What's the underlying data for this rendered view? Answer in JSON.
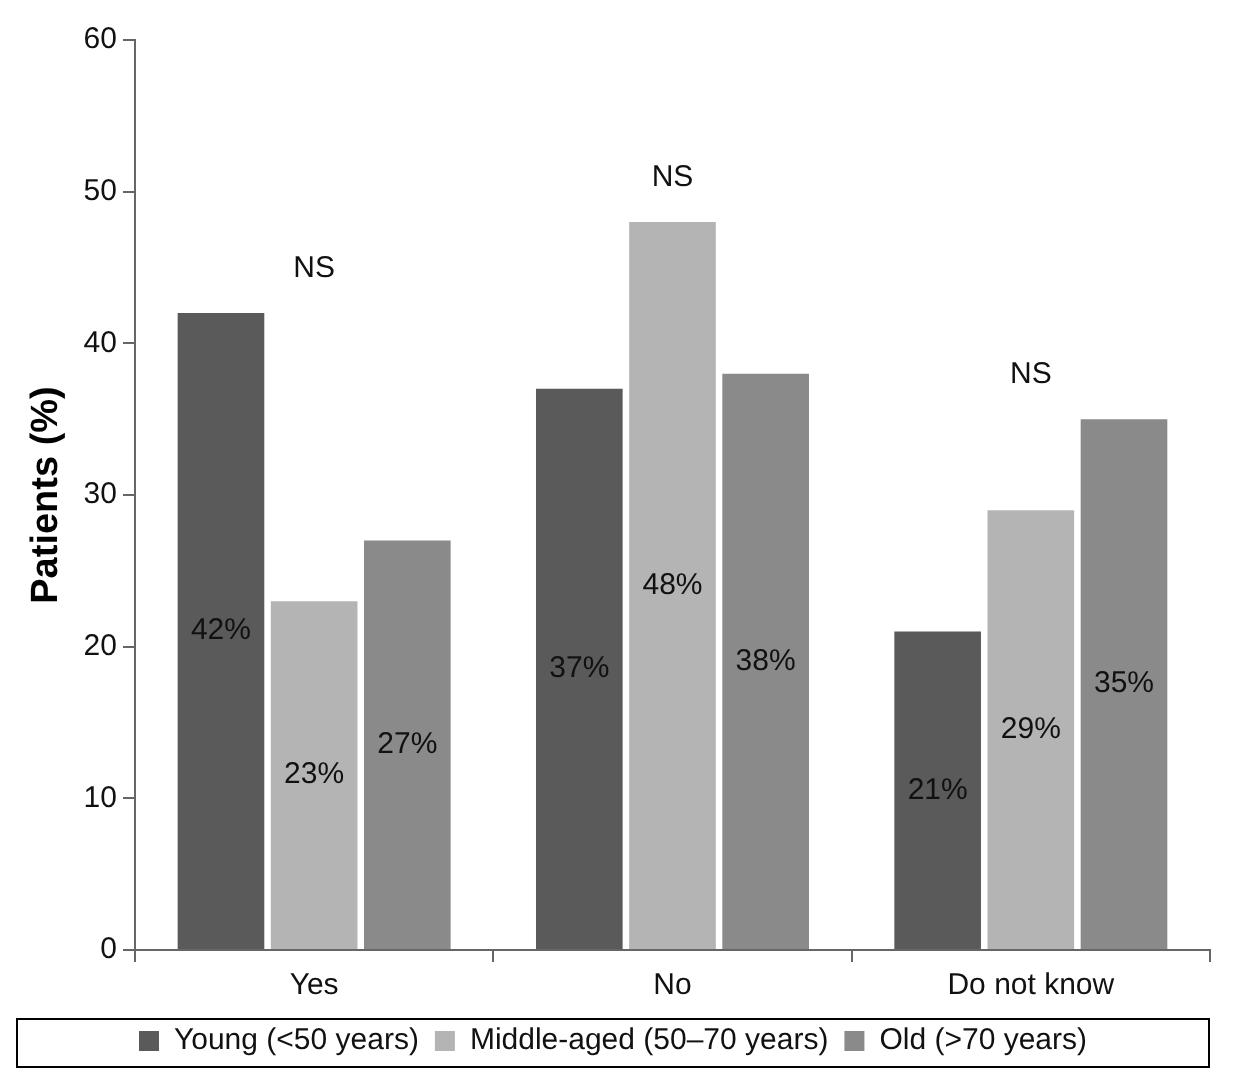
{
  "chart_data": {
    "type": "bar",
    "ylabel": "Patients (%)",
    "categories": [
      "Yes",
      "No",
      "Do not know"
    ],
    "series": [
      {
        "name": "Young (<50 years)",
        "color": "#5a5a5a",
        "values": [
          42,
          37,
          21
        ],
        "value_labels": [
          "42%",
          "37%",
          "21%"
        ]
      },
      {
        "name": "Middle-aged (50–70 years)",
        "color": "#b4b4b4",
        "values": [
          23,
          48,
          29
        ],
        "value_labels": [
          "23%",
          "48%",
          "29%"
        ]
      },
      {
        "name": "Old (>70 years)",
        "color": "#8a8a8a",
        "values": [
          27,
          38,
          35
        ],
        "value_labels": [
          "27%",
          "38%",
          "35%"
        ]
      }
    ],
    "ylim": [
      0,
      60
    ],
    "yticks": [
      0,
      10,
      20,
      30,
      40,
      50,
      60
    ],
    "grid": false,
    "legend": "bottom",
    "annotations": [
      "NS",
      "NS",
      "NS"
    ]
  }
}
